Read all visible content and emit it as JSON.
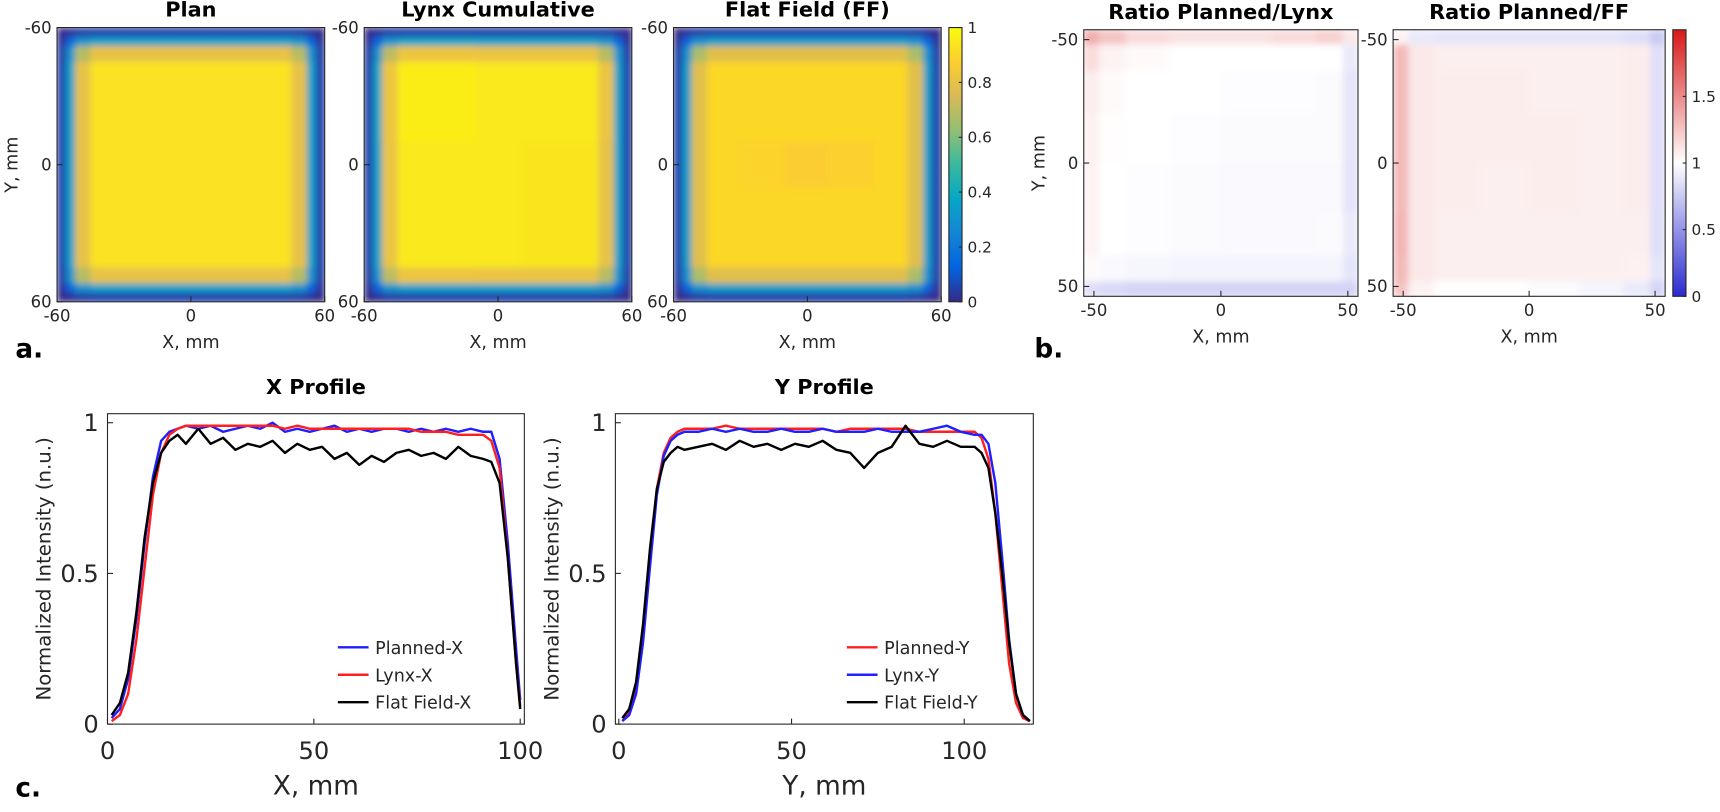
{
  "labels": [
    "a.",
    "b.",
    "c."
  ],
  "chart_data": [
    {
      "type": "heatmap",
      "title": "Plan",
      "xlabel": "X, mm",
      "ylabel": "Y, mm",
      "x": [
        -58,
        -54,
        -50,
        -40,
        -20,
        0,
        20,
        40,
        50,
        54,
        58
      ],
      "y": [
        -58,
        -54,
        -50,
        -40,
        -20,
        0,
        20,
        40,
        50,
        54,
        58
      ],
      "z": [
        [
          0,
          0.02,
          0.04,
          0.05,
          0.05,
          0.05,
          0.05,
          0.05,
          0.04,
          0.02,
          0
        ],
        [
          0.02,
          0.13,
          0.3,
          0.35,
          0.35,
          0.35,
          0.35,
          0.35,
          0.3,
          0.13,
          0.02
        ],
        [
          0.04,
          0.3,
          0.69,
          0.8,
          0.8,
          0.8,
          0.8,
          0.8,
          0.69,
          0.3,
          0.04
        ],
        [
          0.05,
          0.35,
          0.8,
          0.93,
          0.93,
          0.93,
          0.93,
          0.93,
          0.8,
          0.35,
          0.05
        ],
        [
          0.05,
          0.35,
          0.8,
          0.93,
          0.93,
          0.93,
          0.93,
          0.93,
          0.8,
          0.35,
          0.05
        ],
        [
          0.05,
          0.35,
          0.8,
          0.93,
          0.93,
          0.93,
          0.93,
          0.93,
          0.8,
          0.35,
          0.05
        ],
        [
          0.05,
          0.35,
          0.8,
          0.93,
          0.93,
          0.93,
          0.93,
          0.93,
          0.8,
          0.35,
          0.05
        ],
        [
          0.05,
          0.35,
          0.8,
          0.93,
          0.93,
          0.93,
          0.93,
          0.93,
          0.8,
          0.35,
          0.05
        ],
        [
          0.04,
          0.3,
          0.69,
          0.8,
          0.8,
          0.8,
          0.8,
          0.8,
          0.69,
          0.3,
          0.04
        ],
        [
          0.02,
          0.13,
          0.3,
          0.35,
          0.35,
          0.35,
          0.35,
          0.35,
          0.3,
          0.13,
          0.02
        ],
        [
          0,
          0.02,
          0.04,
          0.05,
          0.05,
          0.05,
          0.05,
          0.05,
          0.04,
          0.02,
          0
        ]
      ],
      "clim": [
        0,
        1
      ],
      "colormap": [
        "#352a87",
        "#0363e1",
        "#1485d4",
        "#06a7c6",
        "#38b99e",
        "#92bf73",
        "#d9ba56",
        "#fcce2e",
        "#f9fb0e"
      ],
      "xlim": [
        -60,
        60
      ],
      "ylim": [
        -60,
        60
      ],
      "yreverse": true,
      "xticks": [
        -60,
        0,
        60
      ],
      "yticks": [
        -60,
        0,
        60
      ]
    },
    {
      "type": "heatmap",
      "title": "Lynx Cumulative",
      "xlabel": "X, mm",
      "x": [
        -58,
        -54,
        -50,
        -40,
        -20,
        0,
        20,
        40,
        50,
        54,
        58
      ],
      "y": [
        -58,
        -54,
        -50,
        -40,
        -20,
        0,
        20,
        40,
        50,
        54,
        58
      ],
      "z": [
        [
          0,
          0.02,
          0.04,
          0.05,
          0.05,
          0.05,
          0.05,
          0.05,
          0.04,
          0.02,
          0
        ],
        [
          0.02,
          0.13,
          0.3,
          0.36,
          0.36,
          0.35,
          0.35,
          0.35,
          0.3,
          0.13,
          0.02
        ],
        [
          0.04,
          0.3,
          0.7,
          0.82,
          0.82,
          0.81,
          0.81,
          0.81,
          0.69,
          0.3,
          0.04
        ],
        [
          0.05,
          0.36,
          0.82,
          0.96,
          0.96,
          0.95,
          0.95,
          0.95,
          0.81,
          0.35,
          0.05
        ],
        [
          0.05,
          0.36,
          0.82,
          0.96,
          0.96,
          0.95,
          0.95,
          0.95,
          0.81,
          0.35,
          0.05
        ],
        [
          0.05,
          0.35,
          0.81,
          0.95,
          0.95,
          0.95,
          0.94,
          0.94,
          0.8,
          0.35,
          0.05
        ],
        [
          0.05,
          0.35,
          0.81,
          0.95,
          0.95,
          0.95,
          0.94,
          0.94,
          0.8,
          0.35,
          0.05
        ],
        [
          0.05,
          0.35,
          0.81,
          0.95,
          0.95,
          0.95,
          0.94,
          0.94,
          0.8,
          0.35,
          0.05
        ],
        [
          0.04,
          0.3,
          0.7,
          0.82,
          0.82,
          0.81,
          0.81,
          0.81,
          0.69,
          0.3,
          0.04
        ],
        [
          0.02,
          0.13,
          0.3,
          0.35,
          0.35,
          0.35,
          0.35,
          0.35,
          0.3,
          0.13,
          0.02
        ],
        [
          0,
          0.02,
          0.04,
          0.05,
          0.05,
          0.05,
          0.05,
          0.05,
          0.04,
          0.02,
          0
        ]
      ],
      "clim": [
        0,
        1
      ],
      "colormap": [
        "#352a87",
        "#0363e1",
        "#1485d4",
        "#06a7c6",
        "#38b99e",
        "#92bf73",
        "#d9ba56",
        "#fcce2e",
        "#f9fb0e"
      ],
      "xlim": [
        -60,
        60
      ],
      "ylim": [
        -60,
        60
      ],
      "yreverse": true,
      "xticks": [
        -60,
        0,
        60
      ],
      "yticks": [
        -60,
        0,
        60
      ]
    },
    {
      "type": "heatmap",
      "title": "Flat Field  (FF)",
      "xlabel": "X, mm",
      "x": [
        -58,
        -54,
        -50,
        -40,
        -20,
        0,
        20,
        40,
        50,
        54,
        58
      ],
      "y": [
        -58,
        -54,
        -50,
        -40,
        -20,
        0,
        20,
        40,
        50,
        54,
        58
      ],
      "z": [
        [
          0,
          0.02,
          0.04,
          0.05,
          0.05,
          0.05,
          0.05,
          0.05,
          0.04,
          0.02,
          0
        ],
        [
          0.02,
          0.13,
          0.29,
          0.34,
          0.34,
          0.34,
          0.34,
          0.34,
          0.29,
          0.13,
          0.02
        ],
        [
          0.04,
          0.29,
          0.67,
          0.78,
          0.78,
          0.78,
          0.78,
          0.78,
          0.67,
          0.29,
          0.04
        ],
        [
          0.05,
          0.34,
          0.78,
          0.9,
          0.9,
          0.9,
          0.9,
          0.9,
          0.78,
          0.34,
          0.05
        ],
        [
          0.05,
          0.34,
          0.78,
          0.9,
          0.9,
          0.9,
          0.9,
          0.9,
          0.78,
          0.34,
          0.05
        ],
        [
          0.05,
          0.34,
          0.78,
          0.9,
          0.89,
          0.87,
          0.88,
          0.9,
          0.78,
          0.34,
          0.05
        ],
        [
          0.05,
          0.34,
          0.78,
          0.9,
          0.9,
          0.9,
          0.9,
          0.9,
          0.78,
          0.34,
          0.05
        ],
        [
          0.05,
          0.34,
          0.78,
          0.9,
          0.9,
          0.9,
          0.9,
          0.9,
          0.78,
          0.34,
          0.05
        ],
        [
          0.04,
          0.29,
          0.67,
          0.78,
          0.78,
          0.78,
          0.78,
          0.78,
          0.67,
          0.29,
          0.04
        ],
        [
          0.02,
          0.13,
          0.29,
          0.34,
          0.34,
          0.34,
          0.34,
          0.34,
          0.29,
          0.13,
          0.02
        ],
        [
          0,
          0.02,
          0.04,
          0.05,
          0.05,
          0.05,
          0.05,
          0.05,
          0.04,
          0.02,
          0
        ]
      ],
      "clim": [
        0,
        1
      ],
      "colormap": [
        "#352a87",
        "#0363e1",
        "#1485d4",
        "#06a7c6",
        "#38b99e",
        "#92bf73",
        "#d9ba56",
        "#fcce2e",
        "#f9fb0e"
      ],
      "colorbar": {
        "ticks": [
          0,
          0.2,
          0.4,
          0.6,
          0.8,
          1
        ]
      },
      "xlim": [
        -60,
        60
      ],
      "ylim": [
        -60,
        60
      ],
      "yreverse": true,
      "xticks": [
        -60,
        0,
        60
      ],
      "yticks": [
        -60,
        0,
        60
      ]
    },
    {
      "type": "heatmap",
      "title": "Ratio Planned/Lynx",
      "xlabel": "X, mm",
      "ylabel": "Y, mm",
      "x": [
        -51,
        -45,
        -30,
        -10,
        10,
        30,
        45,
        51
      ],
      "y": [
        -51,
        -45,
        -30,
        -10,
        10,
        30,
        45,
        51
      ],
      "z": [
        [
          1.35,
          1.25,
          1.15,
          1.12,
          1.12,
          1.15,
          1.2,
          1.1
        ],
        [
          1.15,
          1.05,
          1.02,
          1.0,
          1.0,
          1.0,
          1.0,
          0.9
        ],
        [
          1.08,
          1.02,
          1.0,
          1.0,
          0.99,
          0.99,
          0.98,
          0.88
        ],
        [
          1.06,
          1.01,
          1.0,
          0.99,
          0.98,
          0.98,
          0.98,
          0.88
        ],
        [
          1.05,
          1.0,
          0.99,
          0.98,
          0.97,
          0.97,
          0.97,
          0.88
        ],
        [
          1.05,
          1.0,
          0.99,
          0.98,
          0.97,
          0.97,
          0.98,
          0.9
        ],
        [
          1.02,
          0.97,
          0.96,
          0.95,
          0.95,
          0.95,
          0.95,
          0.88
        ],
        [
          0.85,
          0.82,
          0.8,
          0.8,
          0.8,
          0.8,
          0.8,
          0.8
        ]
      ],
      "clim": [
        0,
        2
      ],
      "colormap": [
        "#2a2ad0",
        "#ffffff",
        "#d81818"
      ],
      "xlim": [
        -54,
        54
      ],
      "ylim": [
        -54,
        54
      ],
      "yreverse": true,
      "xticks": [
        -50,
        0,
        50
      ],
      "yticks": [
        -50,
        0,
        50
      ]
    },
    {
      "type": "heatmap",
      "title": "Ratio Planned/FF",
      "xlabel": "X, mm",
      "x": [
        -51,
        -45,
        -30,
        -10,
        10,
        30,
        45,
        51
      ],
      "y": [
        -51,
        -45,
        -30,
        -10,
        10,
        30,
        45,
        51
      ],
      "z": [
        [
          1.05,
          0.9,
          0.88,
          0.88,
          0.88,
          0.88,
          0.85,
          0.75
        ],
        [
          1.3,
          1.1,
          1.07,
          1.07,
          1.07,
          1.07,
          1.08,
          0.85
        ],
        [
          1.3,
          1.1,
          1.08,
          1.08,
          1.07,
          1.07,
          1.08,
          0.85
        ],
        [
          1.3,
          1.1,
          1.08,
          1.08,
          1.08,
          1.07,
          1.08,
          0.85
        ],
        [
          1.3,
          1.1,
          1.08,
          1.07,
          1.08,
          1.07,
          1.08,
          0.85
        ],
        [
          1.32,
          1.1,
          1.07,
          1.07,
          1.07,
          1.07,
          1.07,
          0.85
        ],
        [
          1.3,
          1.1,
          1.07,
          1.07,
          1.07,
          1.07,
          1.06,
          0.88
        ],
        [
          1.25,
          1.05,
          1.0,
          1.0,
          0.98,
          0.95,
          0.9,
          0.8
        ]
      ],
      "clim": [
        0,
        2
      ],
      "colormap": [
        "#2a2ad0",
        "#ffffff",
        "#d81818"
      ],
      "colorbar": {
        "ticks": [
          0,
          0.5,
          1,
          1.5
        ]
      },
      "xlim": [
        -54,
        54
      ],
      "ylim": [
        -54,
        54
      ],
      "yreverse": true,
      "xticks": [
        -50,
        0,
        50
      ],
      "yticks": [
        -50,
        0,
        50
      ]
    },
    {
      "type": "line",
      "title": "X Profile",
      "xlabel": "X, mm",
      "ylabel": "Normalized Intensity (n.u.)",
      "x": [
        1,
        3,
        5,
        7,
        9,
        11,
        13,
        15,
        17,
        19,
        22,
        25,
        28,
        31,
        34,
        37,
        40,
        43,
        46,
        49,
        52,
        55,
        58,
        61,
        64,
        67,
        70,
        73,
        76,
        79,
        82,
        85,
        88,
        91,
        93,
        95,
        97,
        99,
        100
      ],
      "series": [
        {
          "name": "Planned-X",
          "color": "#1f1fff",
          "values": [
            0.02,
            0.05,
            0.15,
            0.35,
            0.6,
            0.82,
            0.94,
            0.97,
            0.98,
            0.99,
            0.98,
            0.99,
            0.97,
            0.98,
            0.99,
            0.98,
            1.0,
            0.97,
            0.98,
            0.97,
            0.98,
            0.99,
            0.97,
            0.98,
            0.97,
            0.98,
            0.98,
            0.97,
            0.98,
            0.97,
            0.98,
            0.97,
            0.98,
            0.97,
            0.97,
            0.88,
            0.6,
            0.25,
            0.08
          ]
        },
        {
          "name": "Lynx-X",
          "color": "#ff1f1f",
          "values": [
            0.01,
            0.03,
            0.1,
            0.28,
            0.52,
            0.76,
            0.9,
            0.96,
            0.98,
            0.99,
            0.99,
            0.99,
            0.99,
            0.99,
            0.99,
            0.99,
            0.99,
            0.98,
            0.99,
            0.98,
            0.98,
            0.98,
            0.98,
            0.98,
            0.98,
            0.98,
            0.98,
            0.98,
            0.97,
            0.97,
            0.97,
            0.96,
            0.96,
            0.96,
            0.94,
            0.85,
            0.55,
            0.2,
            0.06
          ]
        },
        {
          "name": "Flat Field-X",
          "color": "#000000",
          "values": [
            0.03,
            0.07,
            0.17,
            0.37,
            0.62,
            0.8,
            0.9,
            0.94,
            0.96,
            0.93,
            0.98,
            0.93,
            0.95,
            0.91,
            0.93,
            0.92,
            0.94,
            0.9,
            0.93,
            0.91,
            0.92,
            0.88,
            0.9,
            0.86,
            0.89,
            0.87,
            0.9,
            0.91,
            0.89,
            0.9,
            0.88,
            0.92,
            0.89,
            0.88,
            0.87,
            0.8,
            0.55,
            0.2,
            0.05
          ]
        }
      ],
      "xlim": [
        0,
        101
      ],
      "ylim": [
        0,
        1.03
      ],
      "xticks": [
        0,
        50,
        100
      ],
      "yticks": [
        0,
        0.5,
        1
      ],
      "legend": "lower right"
    },
    {
      "type": "line",
      "title": "Y Profile",
      "xlabel": "Y, mm",
      "ylabel": "Normalized Intensity (n.u.)",
      "x": [
        1,
        3,
        5,
        7,
        9,
        11,
        13,
        15,
        17,
        19,
        23,
        27,
        31,
        35,
        39,
        43,
        47,
        51,
        55,
        59,
        63,
        67,
        71,
        75,
        79,
        83,
        87,
        91,
        95,
        99,
        103,
        105,
        107,
        109,
        111,
        113,
        115,
        117,
        119
      ],
      "series": [
        {
          "name": "Planned-Y",
          "color": "#ff1f1f",
          "values": [
            0.01,
            0.04,
            0.12,
            0.3,
            0.55,
            0.78,
            0.9,
            0.95,
            0.97,
            0.98,
            0.98,
            0.98,
            0.99,
            0.98,
            0.98,
            0.98,
            0.98,
            0.98,
            0.98,
            0.98,
            0.97,
            0.98,
            0.98,
            0.98,
            0.98,
            0.98,
            0.97,
            0.97,
            0.97,
            0.97,
            0.97,
            0.95,
            0.88,
            0.7,
            0.45,
            0.2,
            0.07,
            0.02,
            0.01
          ]
        },
        {
          "name": "Lynx-Y",
          "color": "#1f1fff",
          "values": [
            0.01,
            0.03,
            0.1,
            0.27,
            0.52,
            0.76,
            0.89,
            0.94,
            0.96,
            0.97,
            0.97,
            0.98,
            0.97,
            0.98,
            0.97,
            0.97,
            0.98,
            0.97,
            0.97,
            0.98,
            0.97,
            0.97,
            0.97,
            0.98,
            0.97,
            0.97,
            0.97,
            0.98,
            0.99,
            0.97,
            0.96,
            0.96,
            0.93,
            0.8,
            0.55,
            0.28,
            0.1,
            0.03,
            0.01
          ]
        },
        {
          "name": "Flat Field-Y",
          "color": "#000000",
          "values": [
            0.02,
            0.05,
            0.14,
            0.33,
            0.58,
            0.78,
            0.87,
            0.9,
            0.92,
            0.91,
            0.92,
            0.93,
            0.91,
            0.94,
            0.92,
            0.93,
            0.91,
            0.93,
            0.92,
            0.94,
            0.91,
            0.9,
            0.85,
            0.9,
            0.92,
            0.99,
            0.93,
            0.92,
            0.94,
            0.92,
            0.92,
            0.9,
            0.85,
            0.7,
            0.5,
            0.27,
            0.1,
            0.03,
            0.01
          ]
        }
      ],
      "xlim": [
        -1,
        120
      ],
      "ylim": [
        0,
        1.03
      ],
      "xticks": [
        0,
        50,
        100
      ],
      "yticks": [
        0,
        0.5,
        1
      ],
      "legend": "lower right"
    }
  ]
}
